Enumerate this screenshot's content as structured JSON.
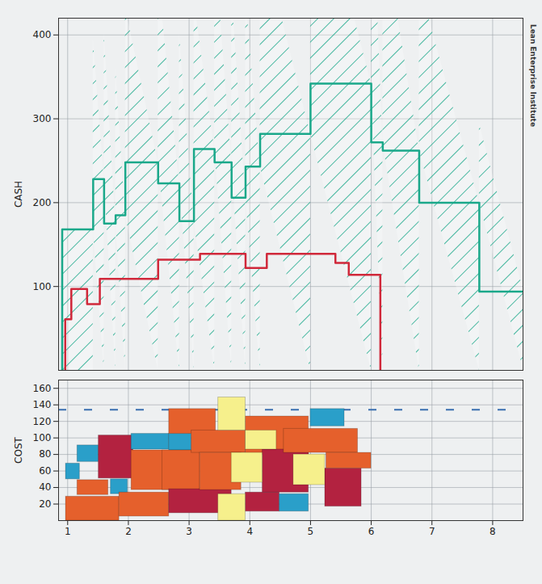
{
  "chart_data": [
    {
      "type": "step",
      "y_label": "CASH",
      "annotation": "Lean Enterprise Institute",
      "xlim": [
        0.85,
        8.5
      ],
      "xticks": [
        1,
        2,
        3,
        4,
        5,
        6,
        7,
        8
      ],
      "ylim": [
        0,
        420
      ],
      "yticks": [
        100,
        200,
        300,
        400
      ],
      "grid": true,
      "tick_labels": "y",
      "series": [
        {
          "type": "area",
          "color": "#1aa88a",
          "bins": [
            0.91,
            1.42,
            1.6,
            1.79,
            1.95,
            2.49,
            2.84,
            3.08,
            3.42,
            3.7,
            3.93,
            4.17,
            5.0,
            6.0,
            6.19,
            6.79,
            7.78,
            8.51
          ],
          "values": [
            168,
            228,
            175,
            185,
            248,
            223,
            178,
            264,
            248,
            206,
            243,
            282,
            342,
            272,
            262,
            200,
            94
          ]
        },
        {
          "type": "line",
          "color": "#d0283a",
          "bins": [
            0.96,
            1.06,
            1.32,
            1.53,
            2.49,
            3.18,
            3.93,
            4.28,
            5.41,
            5.63,
            6.15
          ],
          "values": [
            61,
            97,
            79,
            109,
            132,
            139,
            122,
            139,
            128,
            114
          ]
        }
      ]
    },
    {
      "type": "block",
      "y_label": "COST",
      "xlim": [
        0.85,
        8.5
      ],
      "xticks": [
        1,
        2,
        3,
        4,
        5,
        6,
        7,
        8
      ],
      "ylim": [
        0,
        170
      ],
      "yticks": [
        20,
        40,
        60,
        80,
        100,
        120,
        140,
        160
      ],
      "grid": true,
      "reference_line": {
        "value": 134,
        "color": "#3a6fb0",
        "line_style": "dashed"
      },
      "blocks": {
        "x1": [
          0.97,
          1.16,
          0.97,
          1.16,
          1.51,
          1.71,
          1.85,
          2.05,
          2.05,
          2.67,
          2.67,
          2.56,
          2.67,
          3.04,
          3.18,
          3.93,
          4.49,
          3.93,
          4.21,
          4.56,
          5.0,
          5.24,
          5.26,
          3.48,
          3.93,
          3.7,
          3.48,
          4.72
        ],
        "x2": [
          1.85,
          1.67,
          1.2,
          1.51,
          2.08,
          1.99,
          2.67,
          2.67,
          2.8,
          3.04,
          3.44,
          3.18,
          3.7,
          3.93,
          3.86,
          4.49,
          4.97,
          4.97,
          4.97,
          5.78,
          5.56,
          5.84,
          6.0,
          3.93,
          4.44,
          4.21,
          3.93,
          5.24
        ],
        "y1": [
          0,
          31,
          50,
          71,
          51,
          32,
          5,
          86,
          37,
          85,
          105,
          37,
          9,
          82,
          37,
          11,
          11,
          80,
          34,
          82,
          114,
          17,
          63,
          109,
          86,
          46,
          0,
          43
        ],
        "y2": [
          29,
          49,
          69,
          91,
          103,
          50,
          34,
          105,
          85,
          105,
          135,
          85,
          38,
          109,
          82,
          34,
          32,
          126,
          86,
          111,
          135,
          63,
          82,
          149,
          109,
          82,
          32,
          80
        ],
        "colors": [
          "#e5602c",
          "#e5602c",
          "#2a9fc9",
          "#2a9fc9",
          "#b32240",
          "#2a9fc9",
          "#e5602c",
          "#2a9fc9",
          "#e5602c",
          "#2a9fc9",
          "#e5602c",
          "#e5602c",
          "#b32240",
          "#e5602c",
          "#e5602c",
          "#b32240",
          "#2a9fc9",
          "#e5602c",
          "#b32240",
          "#e5602c",
          "#2a9fc9",
          "#b32240",
          "#e5602c",
          "#f6f08c",
          "#f6f08c",
          "#f6f08c",
          "#f6f08c",
          "#f6f08c"
        ]
      }
    }
  ]
}
